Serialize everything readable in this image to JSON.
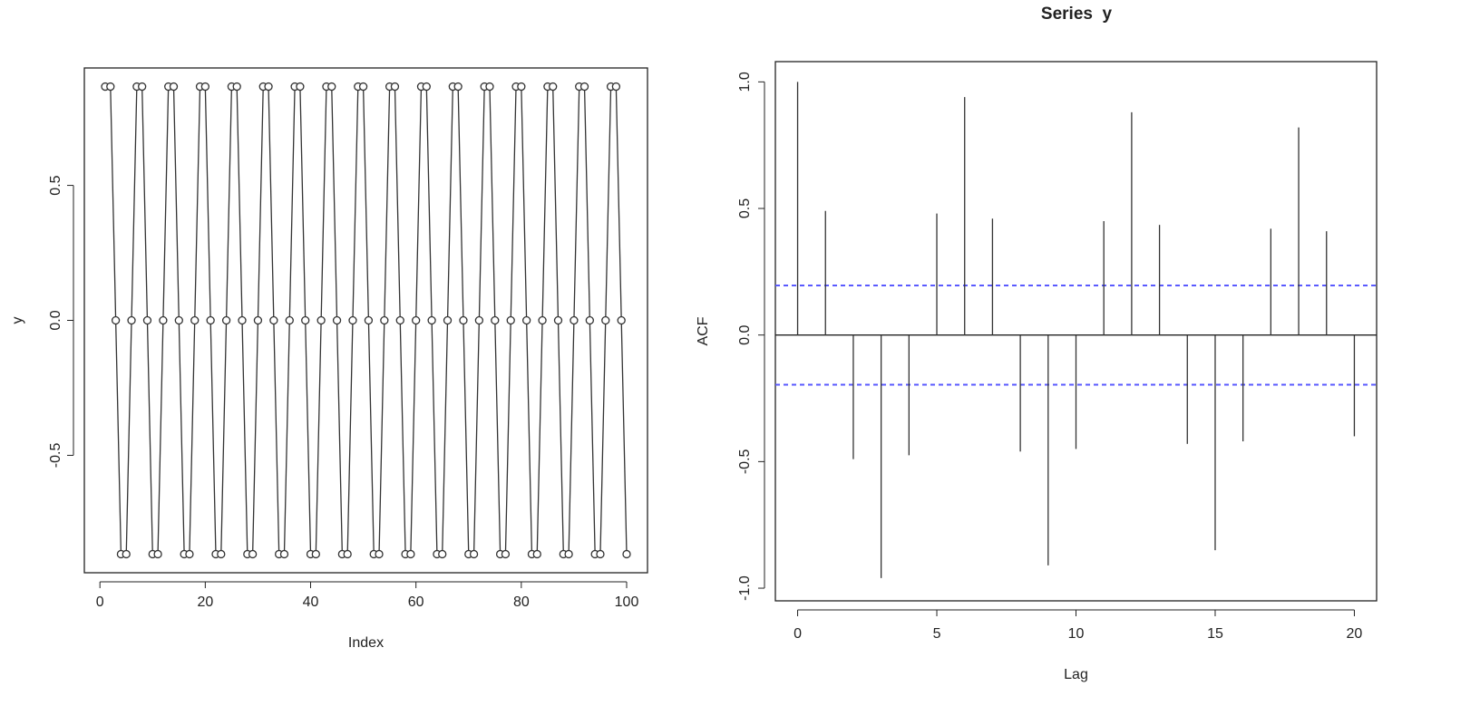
{
  "chart_data": [
    {
      "type": "line",
      "xlabel": "Index",
      "ylabel": "y",
      "x": [
        1,
        2,
        3,
        4,
        5,
        6,
        7,
        8,
        9,
        10,
        11,
        12,
        13,
        14,
        15,
        16,
        17,
        18,
        19,
        20,
        21,
        22,
        23,
        24,
        25,
        26,
        27,
        28,
        29,
        30,
        31,
        32,
        33,
        34,
        35,
        36,
        37,
        38,
        39,
        40,
        41,
        42,
        43,
        44,
        45,
        46,
        47,
        48,
        49,
        50,
        51,
        52,
        53,
        54,
        55,
        56,
        57,
        58,
        59,
        60,
        61,
        62,
        63,
        64,
        65,
        66,
        67,
        68,
        69,
        70,
        71,
        72,
        73,
        74,
        75,
        76,
        77,
        78,
        79,
        80,
        81,
        82,
        83,
        84,
        85,
        86,
        87,
        88,
        89,
        90,
        91,
        92,
        93,
        94,
        95,
        96,
        97,
        98,
        99,
        100
      ],
      "values": [
        0.866,
        0.866,
        0,
        -0.866,
        -0.866,
        0,
        0.866,
        0.866,
        0,
        -0.866,
        -0.866,
        0,
        0.866,
        0.866,
        0,
        -0.866,
        -0.866,
        0,
        0.866,
        0.866,
        0,
        -0.866,
        -0.866,
        0,
        0.866,
        0.866,
        0,
        -0.866,
        -0.866,
        0,
        0.866,
        0.866,
        0,
        -0.866,
        -0.866,
        0,
        0.866,
        0.866,
        0,
        -0.866,
        -0.866,
        0,
        0.866,
        0.866,
        0,
        -0.866,
        -0.866,
        0,
        0.866,
        0.866,
        0,
        -0.866,
        -0.866,
        0,
        0.866,
        0.866,
        0,
        -0.866,
        -0.866,
        0,
        0.866,
        0.866,
        0,
        -0.866,
        -0.866,
        0,
        0.866,
        0.866,
        0,
        -0.866,
        -0.866,
        0,
        0.866,
        0.866,
        0,
        -0.866,
        -0.866,
        0,
        0.866,
        0.866,
        0,
        -0.866,
        -0.866,
        0,
        0.866,
        0.866,
        0,
        -0.866,
        -0.866,
        0,
        0.866,
        0.866,
        0,
        -0.866,
        -0.866,
        0,
        0.866,
        0.866,
        0,
        -0.866
      ],
      "color": "#333333",
      "xlim": [
        -2.96,
        103.96
      ],
      "ylim": [
        -0.935,
        0.935
      ],
      "xticks": [
        0,
        20,
        40,
        60,
        80,
        100
      ],
      "yticks": [
        -0.5,
        {
          "value": 0,
          "label": "0.0"
        },
        0.5
      ]
    },
    {
      "type": "stem",
      "title": "Series  y",
      "xlabel": "Lag",
      "ylabel": "ACF",
      "x": [
        0,
        1,
        2,
        3,
        4,
        5,
        6,
        7,
        8,
        9,
        10,
        11,
        12,
        13,
        14,
        15,
        16,
        17,
        18,
        19,
        20
      ],
      "values": [
        1.0,
        0.49,
        -0.49,
        -0.96,
        -0.475,
        0.48,
        0.94,
        0.46,
        -0.46,
        -0.91,
        -0.45,
        0.45,
        0.88,
        0.435,
        -0.43,
        -0.85,
        -0.42,
        0.42,
        0.82,
        0.41,
        -0.4
      ],
      "color": "#333333",
      "ci_lines": [
        0.196,
        -0.196
      ],
      "ci_color": "#5a5aff",
      "xlim": [
        -0.8,
        20.8
      ],
      "ylim": [
        -1.05,
        1.08
      ],
      "xticks": [
        0,
        5,
        10,
        15,
        20
      ],
      "yticks": [
        {
          "value": -1,
          "label": "-1.0"
        },
        -0.5,
        {
          "value": 0,
          "label": "0.0"
        },
        0.5,
        {
          "value": 1,
          "label": "1.0"
        }
      ]
    }
  ]
}
